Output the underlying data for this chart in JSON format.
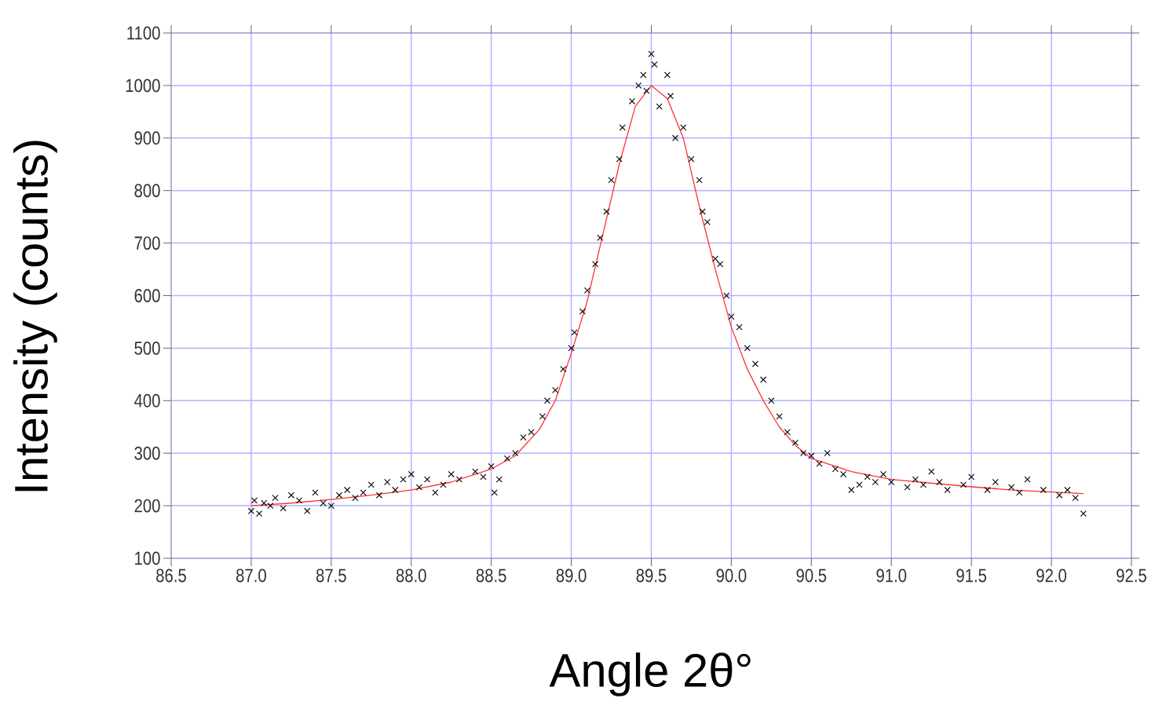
{
  "chart_data": {
    "type": "scatter",
    "xlabel": "Angle 2θ°",
    "ylabel": "Intensity (counts)",
    "xlim": [
      86.5,
      92.5
    ],
    "ylim": [
      100,
      1100
    ],
    "xticks": [
      86.5,
      {
        "value": 87,
        "label": "87.0"
      },
      87.5,
      {
        "value": 88,
        "label": "88.0"
      },
      88.5,
      {
        "value": 89,
        "label": "89.0"
      },
      89.5,
      {
        "value": 90,
        "label": "90.0"
      },
      90.5,
      {
        "value": 91,
        "label": "91.0"
      },
      91.5,
      {
        "value": 92,
        "label": "92.0"
      },
      92.5
    ],
    "yticks": [
      100,
      200,
      300,
      400,
      500,
      600,
      700,
      800,
      900,
      1000,
      1100
    ],
    "grid": true,
    "series": [
      {
        "marker": "cross",
        "color": "#000000",
        "x": [
          87.0,
          87.02,
          87.05,
          87.08,
          87.12,
          87.15,
          87.2,
          87.25,
          87.3,
          87.35,
          87.4,
          87.45,
          87.5,
          87.55,
          87.6,
          87.65,
          87.7,
          87.75,
          87.8,
          87.85,
          87.9,
          87.95,
          88.0,
          88.05,
          88.1,
          88.15,
          88.2,
          88.25,
          88.3,
          88.4,
          88.45,
          88.5,
          88.52,
          88.55,
          88.6,
          88.65,
          88.7,
          88.75,
          88.82,
          88.85,
          88.9,
          88.95,
          89.0,
          89.02,
          89.07,
          89.1,
          89.15,
          89.18,
          89.22,
          89.25,
          89.3,
          89.32,
          89.38,
          89.42,
          89.45,
          89.47,
          89.5,
          89.52,
          89.55,
          89.6,
          89.62,
          89.65,
          89.7,
          89.75,
          89.8,
          89.82,
          89.85,
          89.9,
          89.93,
          89.97,
          90.0,
          90.05,
          90.1,
          90.15,
          90.2,
          90.25,
          90.3,
          90.35,
          90.4,
          90.45,
          90.5,
          90.55,
          90.6,
          90.65,
          90.7,
          90.75,
          90.8,
          90.85,
          90.9,
          90.95,
          91.0,
          91.1,
          91.15,
          91.2,
          91.25,
          91.3,
          91.35,
          91.45,
          91.5,
          91.6,
          91.65,
          91.75,
          91.8,
          91.85,
          91.95,
          92.05,
          92.1,
          92.15,
          92.2
        ],
        "values": [
          190,
          210,
          185,
          205,
          200,
          215,
          195,
          220,
          210,
          190,
          225,
          205,
          200,
          220,
          230,
          215,
          225,
          240,
          220,
          245,
          230,
          250,
          260,
          235,
          250,
          225,
          240,
          260,
          250,
          265,
          255,
          275,
          225,
          250,
          290,
          300,
          330,
          340,
          370,
          400,
          420,
          460,
          500,
          530,
          570,
          610,
          660,
          710,
          760,
          820,
          860,
          920,
          970,
          1000,
          1020,
          990,
          1060,
          1040,
          960,
          1020,
          980,
          900,
          920,
          860,
          820,
          760,
          740,
          670,
          660,
          600,
          560,
          540,
          500,
          470,
          440,
          400,
          370,
          340,
          320,
          300,
          295,
          280,
          300,
          270,
          260,
          230,
          240,
          255,
          245,
          260,
          245,
          235,
          250,
          240,
          265,
          245,
          230,
          240,
          255,
          230,
          245,
          235,
          225,
          250,
          230,
          220,
          230,
          215,
          185
        ]
      },
      {
        "type": "line",
        "marker": "none",
        "color": "#ff3030",
        "x": [
          87.0,
          87.25,
          87.5,
          87.75,
          88.0,
          88.25,
          88.5,
          88.65,
          88.8,
          88.9,
          89.0,
          89.1,
          89.2,
          89.3,
          89.4,
          89.5,
          89.6,
          89.7,
          89.8,
          89.9,
          90.0,
          90.1,
          90.2,
          90.3,
          90.4,
          90.5,
          90.75,
          91.0,
          91.25,
          91.5,
          91.75,
          92.0,
          92.2
        ],
        "values": [
          200,
          205,
          212,
          220,
          230,
          245,
          270,
          295,
          345,
          400,
          490,
          590,
          720,
          850,
          960,
          1000,
          975,
          900,
          770,
          650,
          540,
          460,
          400,
          350,
          315,
          290,
          265,
          250,
          243,
          236,
          230,
          226,
          223
        ]
      }
    ]
  }
}
